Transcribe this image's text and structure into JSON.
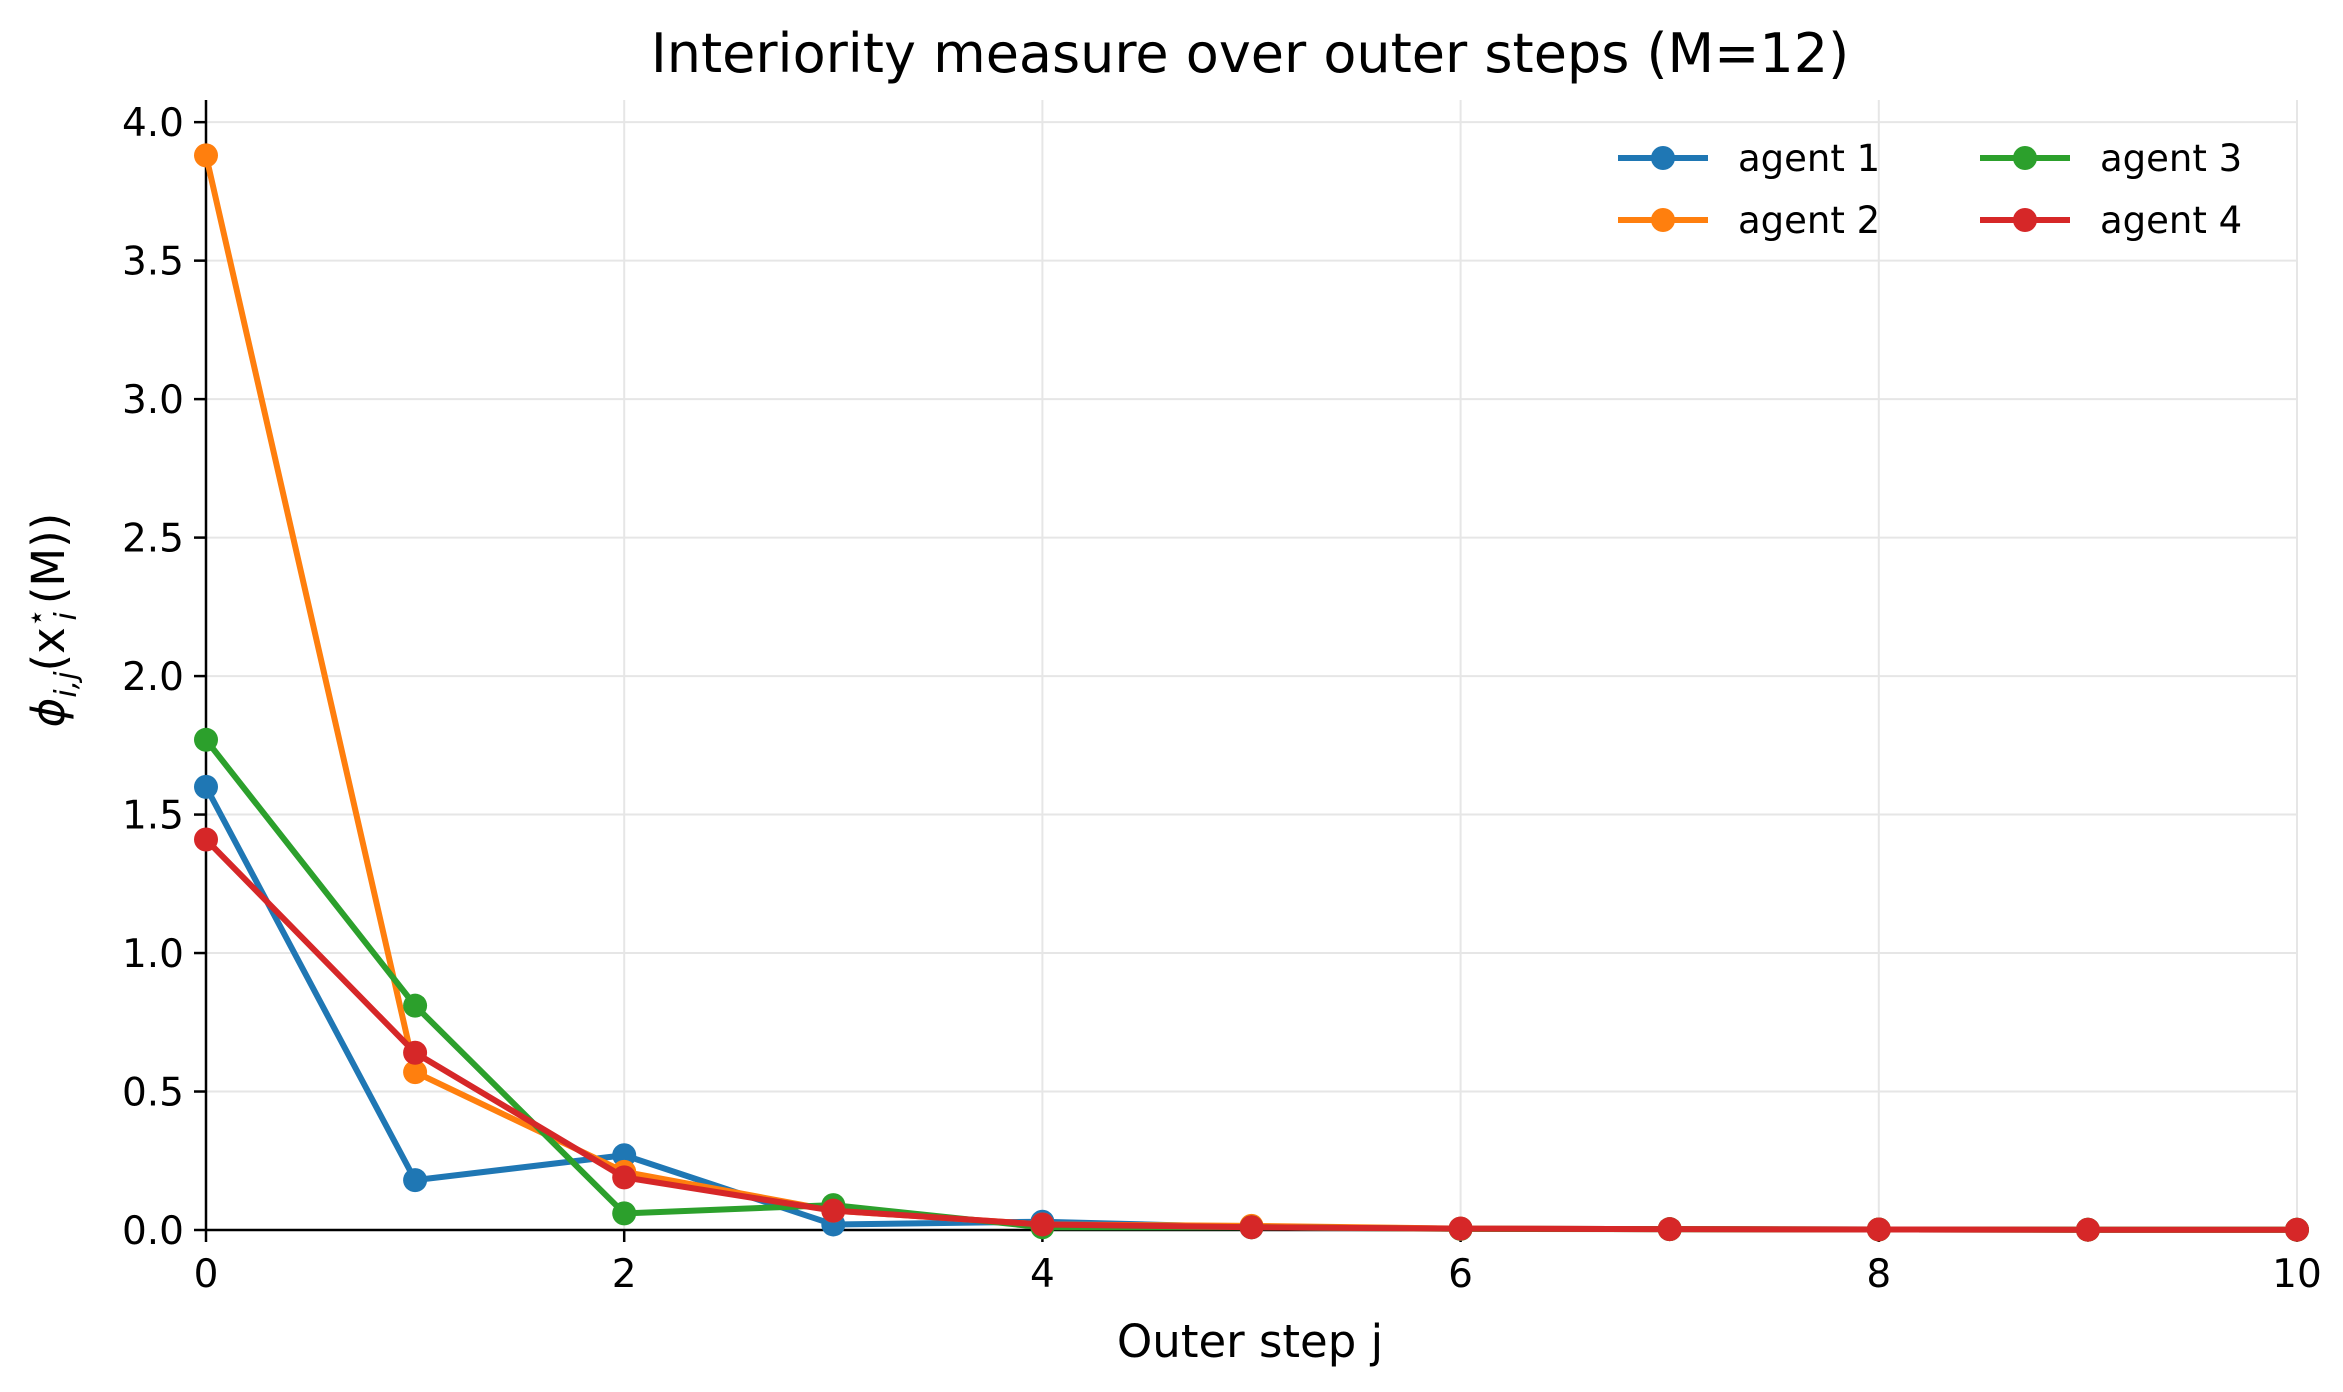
{
  "chart_data": {
    "type": "line",
    "title": "Interiority measure over outer steps (M=12)",
    "xlabel": "Outer step j",
    "ylabel": "ϕ",
    "ylabel_sub": "i,j",
    "ylabel_tail_open": "(x",
    "ylabel_sup": "⋆",
    "ylabel_sub2": "i",
    "ylabel_tail_close": "(M))",
    "xlim": [
      0,
      10
    ],
    "ylim": [
      0,
      4.08
    ],
    "xticks": [
      0,
      2,
      4,
      6,
      8,
      10
    ],
    "xtick_labels": [
      "0",
      "2",
      "4",
      "6",
      "8",
      "10"
    ],
    "yticks": [
      0.0,
      0.5,
      1.0,
      1.5,
      2.0,
      2.5,
      3.0,
      3.5,
      4.0
    ],
    "ytick_labels": [
      "0.0",
      "0.5",
      "1.0",
      "1.5",
      "2.0",
      "2.5",
      "3.0",
      "3.5",
      "4.0"
    ],
    "grid": true,
    "legend_position": "top-right",
    "legend_columns": 2,
    "x": [
      0,
      1,
      2,
      3,
      4,
      5,
      6,
      7,
      8,
      9,
      10
    ],
    "series": [
      {
        "name": "agent 1",
        "color": "#1f77b4",
        "values": [
          1.6,
          0.18,
          0.27,
          0.02,
          0.03,
          0.01,
          0.005,
          0.003,
          0.002,
          0.001,
          0.001
        ]
      },
      {
        "name": "agent 2",
        "color": "#ff7f0e",
        "values": [
          3.88,
          0.57,
          0.21,
          0.07,
          0.02,
          0.015,
          0.005,
          0.003,
          0.002,
          0.001,
          0.001
        ]
      },
      {
        "name": "agent 3",
        "color": "#2ca02c",
        "values": [
          1.77,
          0.81,
          0.06,
          0.09,
          0.01,
          0.01,
          0.004,
          0.003,
          0.002,
          0.001,
          0.001
        ]
      },
      {
        "name": "agent 4",
        "color": "#d62728",
        "values": [
          1.41,
          0.64,
          0.19,
          0.07,
          0.02,
          0.01,
          0.005,
          0.003,
          0.002,
          0.001,
          0.001
        ]
      }
    ]
  }
}
